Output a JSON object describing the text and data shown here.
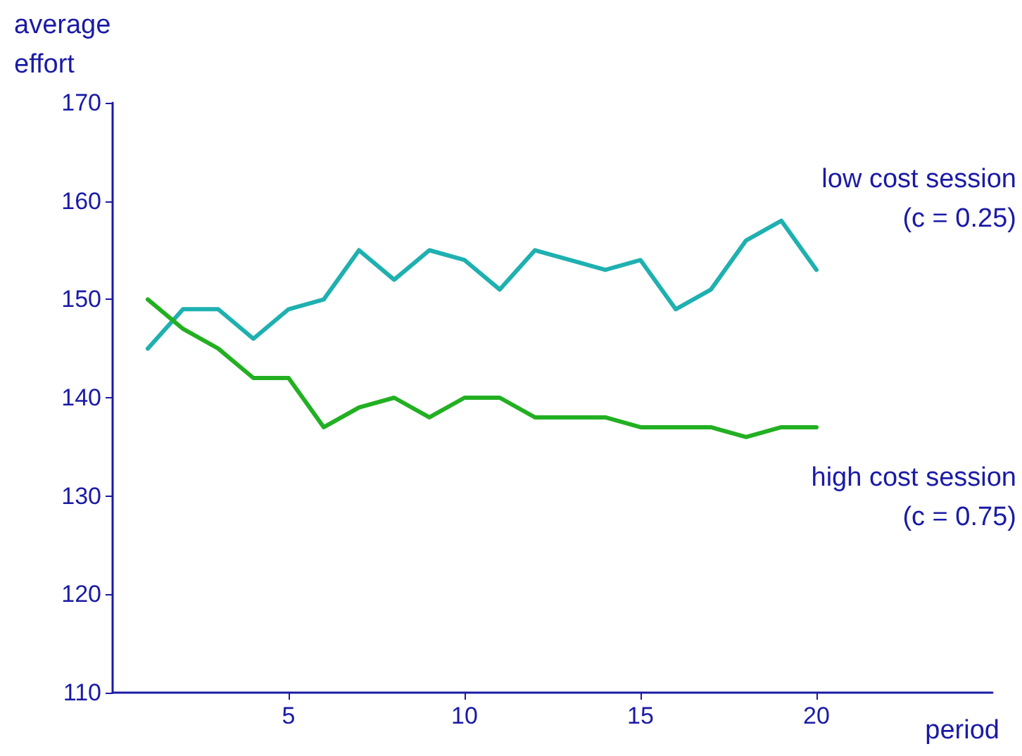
{
  "chart_data": {
    "type": "line",
    "xlabel": "period",
    "ylabel": "average\neffort",
    "x": [
      1,
      2,
      3,
      4,
      5,
      6,
      7,
      8,
      9,
      10,
      11,
      12,
      13,
      14,
      15,
      16,
      17,
      18,
      19,
      20
    ],
    "series": [
      {
        "name": "low cost session\n(c = 0.25)",
        "color": "#1fb0b0",
        "values": [
          145,
          149,
          149,
          146,
          149,
          150,
          155,
          152,
          155,
          154,
          151,
          155,
          154,
          153,
          154,
          149,
          151,
          156,
          158,
          153
        ]
      },
      {
        "name": "high cost session\n(c = 0.75)",
        "color": "#22b022",
        "values": [
          150,
          147,
          145,
          142,
          142,
          137,
          139,
          140,
          138,
          140,
          140,
          138,
          138,
          138,
          137,
          137,
          137,
          136,
          137,
          137
        ]
      }
    ],
    "xlim": [
      0,
      25
    ],
    "xticks": [
      5,
      10,
      15,
      20
    ],
    "ylim": [
      110,
      170
    ],
    "yticks": [
      110,
      120,
      130,
      140,
      150,
      160,
      170
    ],
    "grid": false,
    "legend": false,
    "marker": "none",
    "line_style": "solid"
  }
}
